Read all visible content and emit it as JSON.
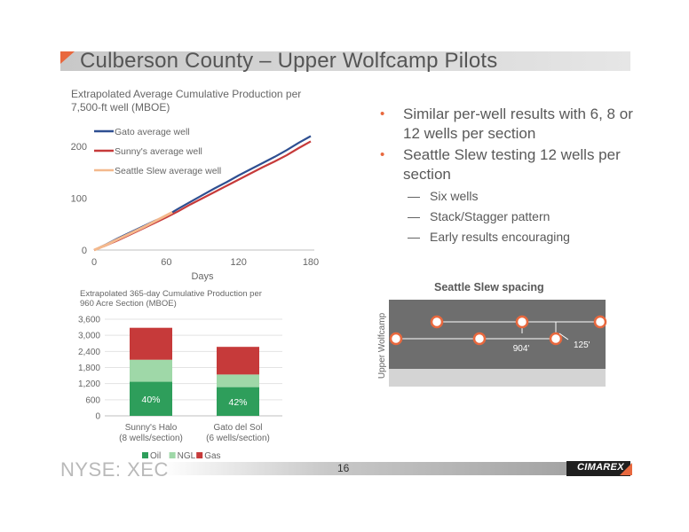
{
  "slide": {
    "title": "Culberson County – Upper Wolfcamp Pilots",
    "page_number": "16",
    "footer_left": "NYSE: XEC",
    "logo_text": "CIMAREX",
    "accent_color": "#e8683e"
  },
  "bullets": [
    {
      "text": "Similar per-well results with 6, 8 or 12 wells per section",
      "subs": []
    },
    {
      "text": "Seattle Slew testing 12 wells per section",
      "subs": [
        "Six wells",
        "Stack/Stagger pattern",
        "Early results encouraging"
      ]
    }
  ],
  "spacing": {
    "title": "Seattle Slew spacing",
    "ylabel": "Upper Wolfcamp",
    "dim_horizontal": "904'",
    "dim_vertical": "125'"
  },
  "chart_data": [
    {
      "type": "line",
      "title_lines": [
        "Extrapolated Average Cumulative Production per",
        "7,500-ft well (MBOE)"
      ],
      "xlabel": "Days",
      "ylabel": "",
      "xlim": [
        0,
        180
      ],
      "ylim": [
        0,
        250
      ],
      "x_ticks": [
        0,
        60,
        120,
        180
      ],
      "y_ticks": [
        0,
        100,
        200
      ],
      "legend_position": "top-left",
      "grid": false,
      "series": [
        {
          "name": "Gato average well",
          "color": "#2e4f91",
          "x": [
            0,
            10,
            20,
            30,
            40,
            50,
            60,
            70,
            80,
            90,
            100,
            110,
            120,
            130,
            140,
            150,
            160,
            170,
            180
          ],
          "y": [
            0,
            11,
            23,
            34,
            45,
            56,
            66,
            80,
            93,
            106,
            119,
            131,
            144,
            156,
            168,
            180,
            193,
            207,
            220
          ]
        },
        {
          "name": "Sunny's average well",
          "color": "#c63a3a",
          "x": [
            0,
            10,
            20,
            30,
            40,
            50,
            60,
            70,
            80,
            90,
            100,
            110,
            120,
            130,
            140,
            150,
            160,
            170,
            180
          ],
          "y": [
            0,
            9,
            19,
            30,
            41,
            52,
            63,
            75,
            88,
            100,
            112,
            124,
            136,
            148,
            160,
            171,
            183,
            197,
            210
          ]
        },
        {
          "name": "Seattle Slew average well",
          "color": "#f4b98d",
          "x": [
            0,
            10,
            20,
            30,
            40,
            50,
            60,
            65
          ],
          "y": [
            0,
            10,
            21,
            32,
            43,
            55,
            67,
            73
          ]
        }
      ]
    },
    {
      "type": "bar",
      "stacked": true,
      "title_lines": [
        "Extrapolated 365-day Cumulative Production per",
        "960 Acre Section (MBOE)"
      ],
      "categories": [
        [
          "Sunny's Halo",
          "(8 wells/section)"
        ],
        [
          "Gato del Sol",
          "(6 wells/section)"
        ]
      ],
      "ylim": [
        0,
        3600
      ],
      "y_ticks": [
        "0",
        "600",
        "1,200",
        "1,800",
        "2,400",
        "3,000",
        "3,600"
      ],
      "y_tick_values": [
        0,
        600,
        1200,
        1800,
        2400,
        3000,
        3600
      ],
      "legend_position": "bottom",
      "series": [
        {
          "name": "Oil",
          "color": "#2e9e5b",
          "values": [
            1270,
            1070
          ]
        },
        {
          "name": "NGL",
          "color": "#9fd8a8",
          "values": [
            820,
            470
          ]
        },
        {
          "name": "Gas",
          "color": "#c63a3a",
          "values": [
            1190,
            1030
          ]
        }
      ],
      "data_labels": [
        "40%",
        "42%"
      ]
    }
  ]
}
